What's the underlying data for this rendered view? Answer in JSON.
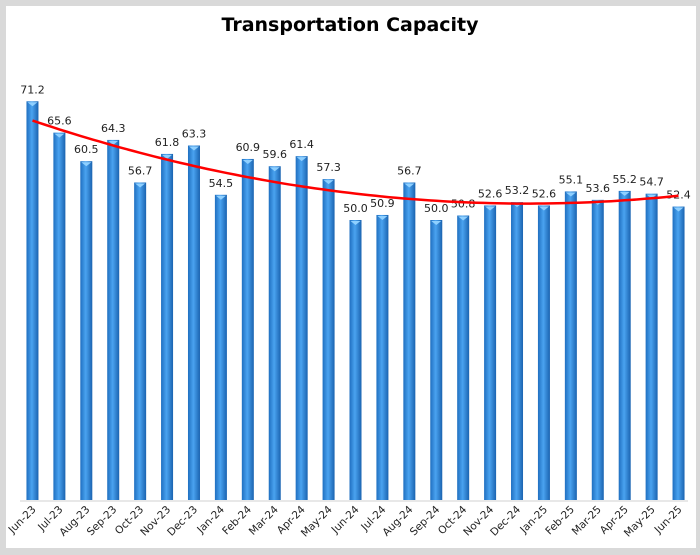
{
  "chart_data": {
    "type": "bar",
    "title": "Transportation Capacity",
    "xlabel": "",
    "ylabel": "",
    "ylim": [
      0,
      75
    ],
    "grid": false,
    "legend": "none",
    "categories": [
      "Jun-23",
      "Jul-23",
      "Aug-23",
      "Sep-23",
      "Oct-23",
      "Nov-23",
      "Dec-23",
      "Jan-24",
      "Feb-24",
      "Mar-24",
      "Apr-24",
      "May-24",
      "Jun-24",
      "Jul-24",
      "Aug-24",
      "Sep-24",
      "Oct-24",
      "Nov-24",
      "Dec-24",
      "Jan-25",
      "Feb-25",
      "Mar-25",
      "Apr-25",
      "May-25",
      "Jun-25"
    ],
    "series": [
      {
        "name": "Transportation Capacity",
        "type": "bar",
        "color": "#2e86de",
        "values": [
          71.2,
          65.6,
          60.5,
          64.3,
          56.7,
          61.8,
          63.3,
          54.5,
          60.9,
          59.6,
          61.4,
          57.3,
          50.0,
          50.9,
          56.7,
          50.0,
          50.8,
          52.6,
          53.2,
          52.6,
          55.1,
          53.6,
          55.2,
          54.7,
          52.4
        ]
      },
      {
        "name": "Trend",
        "type": "polynomial-trendline",
        "color": "#ff0000"
      }
    ],
    "data_labels": [
      "71.2",
      "65.6",
      "60.5",
      "64.3",
      "56.7",
      "61.8",
      "63.3",
      "54.5",
      "60.9",
      "59.6",
      "61.4",
      "57.3",
      "50.0",
      "50.9",
      "56.7",
      "50.0",
      "50.8",
      "52.6",
      "53.2",
      "52.6",
      "55.1",
      "53.6",
      "55.2",
      "54.7",
      "52.4"
    ]
  }
}
